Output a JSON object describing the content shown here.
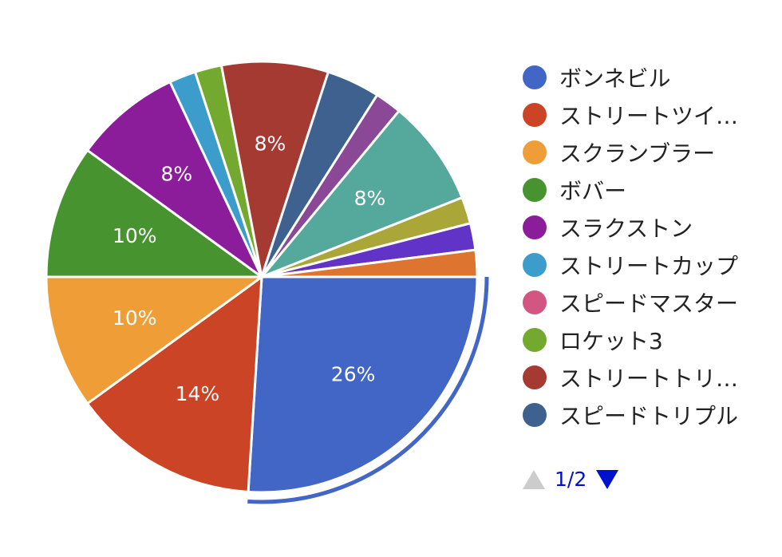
{
  "chart_data": {
    "type": "pie",
    "slices": [
      {
        "label": "ボンネビル",
        "value": 26,
        "color": "#4266c6",
        "data_label": "26%"
      },
      {
        "label": "ストリートツイ…",
        "value": 14,
        "color": "#cb4425",
        "data_label": "14%"
      },
      {
        "label": "スクランブラー",
        "value": 10,
        "color": "#ef9d37",
        "data_label": "10%"
      },
      {
        "label": "ボバー",
        "value": 10,
        "color": "#479330",
        "data_label": "10%"
      },
      {
        "label": "スラクストン",
        "value": 8,
        "color": "#8c1d9a",
        "data_label": "8%"
      },
      {
        "label": "ストリートカップ",
        "value": 2,
        "color": "#3c9ccb",
        "data_label": ""
      },
      {
        "label": "スピードマスター",
        "value": 0,
        "color": "#d35682",
        "data_label": ""
      },
      {
        "label": "ロケット3",
        "value": 2,
        "color": "#74a92f",
        "data_label": ""
      },
      {
        "label": "ストリートトリ…",
        "value": 8,
        "color": "#a53a33",
        "data_label": "8%"
      },
      {
        "label": "スピードトリプル",
        "value": 4,
        "color": "#3e618f",
        "data_label": ""
      },
      {
        "label": "",
        "value": 2,
        "color": "#8a4897",
        "data_label": ""
      },
      {
        "label": "",
        "value": 8,
        "color": "#55a99c",
        "data_label": "8%"
      },
      {
        "label": "",
        "value": 2,
        "color": "#aaa638",
        "data_label": ""
      },
      {
        "label": "",
        "value": 2,
        "color": "#6133c6",
        "data_label": ""
      },
      {
        "label": "",
        "value": 2,
        "color": "#dd7430",
        "data_label": ""
      }
    ],
    "selected_slice": 0,
    "legend_position": "right"
  },
  "legend": {
    "pager": {
      "text": "1/2",
      "prev_enabled": false,
      "next_enabled": true
    }
  }
}
